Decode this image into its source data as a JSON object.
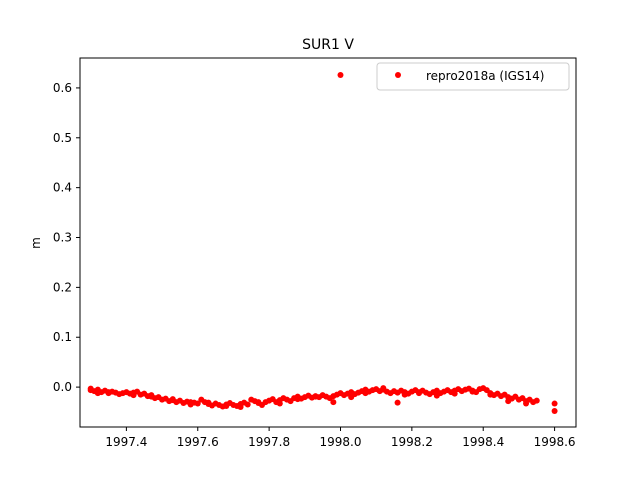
{
  "chart_data": {
    "type": "scatter",
    "title": "SUR1 V",
    "xlabel": "",
    "ylabel": "m",
    "xlim": [
      1997.27,
      1998.66
    ],
    "ylim": [
      -0.08,
      0.66
    ],
    "xticks": [
      1997.4,
      1997.6,
      1997.8,
      1998.0,
      1998.2,
      1998.4,
      1998.6
    ],
    "xtick_labels": [
      "1997.4",
      "1997.6",
      "1997.8",
      "1998.0",
      "1998.2",
      "1998.4",
      "1998.6"
    ],
    "yticks": [
      0.0,
      0.1,
      0.2,
      0.3,
      0.4,
      0.5,
      0.6
    ],
    "ytick_labels": [
      "0.0",
      "0.1",
      "0.2",
      "0.3",
      "0.4",
      "0.5",
      "0.6"
    ],
    "grid": false,
    "legend_position": "top-right",
    "series": [
      {
        "name": "repro2018a (IGS14)",
        "color": "#ff0000",
        "marker": "circle",
        "x": [
          1997.3,
          1997.31,
          1997.32,
          1997.33,
          1997.34,
          1997.35,
          1997.36,
          1997.37,
          1997.38,
          1997.39,
          1997.4,
          1997.41,
          1997.42,
          1997.43,
          1997.44,
          1997.45,
          1997.46,
          1997.47,
          1997.48,
          1997.49,
          1997.5,
          1997.51,
          1997.52,
          1997.53,
          1997.54,
          1997.55,
          1997.56,
          1997.57,
          1997.58,
          1997.59,
          1997.6,
          1997.61,
          1997.62,
          1997.63,
          1997.64,
          1997.65,
          1997.66,
          1997.67,
          1997.68,
          1997.69,
          1997.7,
          1997.71,
          1997.72,
          1997.73,
          1997.74,
          1997.75,
          1997.76,
          1997.77,
          1997.78,
          1997.79,
          1997.8,
          1997.81,
          1997.82,
          1997.83,
          1997.84,
          1997.85,
          1997.86,
          1997.87,
          1997.88,
          1997.89,
          1997.9,
          1997.91,
          1997.92,
          1997.93,
          1997.94,
          1997.95,
          1997.96,
          1997.97,
          1997.98,
          1997.99,
          1998.0,
          1998.01,
          1998.02,
          1998.03,
          1998.04,
          1998.05,
          1998.06,
          1998.07,
          1998.08,
          1998.09,
          1998.1,
          1998.11,
          1998.12,
          1998.13,
          1998.14,
          1998.15,
          1998.16,
          1998.17,
          1998.18,
          1998.19,
          1998.2,
          1998.21,
          1998.22,
          1998.23,
          1998.24,
          1998.25,
          1998.26,
          1998.27,
          1998.28,
          1998.29,
          1998.3,
          1998.31,
          1998.32,
          1998.33,
          1998.34,
          1998.35,
          1998.36,
          1998.37,
          1998.38,
          1998.39,
          1998.4,
          1998.41,
          1998.42,
          1998.43,
          1998.44,
          1998.45,
          1998.46,
          1998.47,
          1998.48,
          1998.49,
          1998.5,
          1998.51,
          1998.52,
          1998.53,
          1998.54,
          1998.55,
          1998.0,
          1997.98,
          1998.16,
          1998.6,
          1998.6,
          1997.3,
          1997.32,
          1997.35,
          1997.42,
          1997.47,
          1997.53,
          1997.58,
          1997.63,
          1997.68,
          1997.72,
          1997.77,
          1997.83,
          1997.88,
          1997.93,
          1998.03,
          1998.07,
          1998.12,
          1998.18,
          1998.22,
          1998.27,
          1998.32,
          1998.37,
          1998.42,
          1998.47,
          1998.52
        ],
        "y": [
          -0.003,
          -0.008,
          -0.005,
          -0.01,
          -0.007,
          -0.012,
          -0.009,
          -0.011,
          -0.014,
          -0.012,
          -0.01,
          -0.013,
          -0.011,
          -0.009,
          -0.015,
          -0.013,
          -0.018,
          -0.016,
          -0.022,
          -0.02,
          -0.025,
          -0.023,
          -0.028,
          -0.026,
          -0.03,
          -0.027,
          -0.032,
          -0.029,
          -0.035,
          -0.031,
          -0.033,
          -0.025,
          -0.03,
          -0.034,
          -0.037,
          -0.033,
          -0.036,
          -0.039,
          -0.035,
          -0.032,
          -0.036,
          -0.038,
          -0.034,
          -0.031,
          -0.035,
          -0.025,
          -0.028,
          -0.032,
          -0.036,
          -0.03,
          -0.027,
          -0.024,
          -0.03,
          -0.026,
          -0.022,
          -0.025,
          -0.028,
          -0.022,
          -0.019,
          -0.023,
          -0.02,
          -0.017,
          -0.021,
          -0.018,
          -0.02,
          -0.016,
          -0.019,
          -0.022,
          -0.018,
          -0.015,
          -0.012,
          -0.016,
          -0.013,
          -0.01,
          -0.014,
          -0.011,
          -0.008,
          -0.012,
          -0.009,
          -0.006,
          -0.004,
          -0.008,
          -0.005,
          -0.009,
          -0.012,
          -0.008,
          -0.011,
          -0.007,
          -0.01,
          -0.013,
          -0.009,
          -0.006,
          -0.01,
          -0.007,
          -0.011,
          -0.014,
          -0.01,
          -0.007,
          -0.012,
          -0.009,
          -0.006,
          -0.01,
          -0.007,
          -0.004,
          -0.008,
          -0.005,
          -0.003,
          -0.007,
          -0.01,
          -0.004,
          -0.002,
          -0.006,
          -0.012,
          -0.016,
          -0.013,
          -0.018,
          -0.015,
          -0.02,
          -0.023,
          -0.019,
          -0.025,
          -0.022,
          -0.028,
          -0.025,
          -0.03,
          -0.027,
          0.626,
          -0.03,
          -0.031,
          -0.033,
          -0.048,
          -0.006,
          -0.012,
          -0.01,
          -0.016,
          -0.019,
          -0.024,
          -0.03,
          -0.031,
          -0.038,
          -0.04,
          -0.03,
          -0.033,
          -0.024,
          -0.019,
          -0.02,
          -0.005,
          -0.002,
          -0.015,
          -0.012,
          -0.017,
          -0.013,
          -0.009,
          -0.015,
          -0.028,
          -0.033
        ]
      }
    ]
  }
}
